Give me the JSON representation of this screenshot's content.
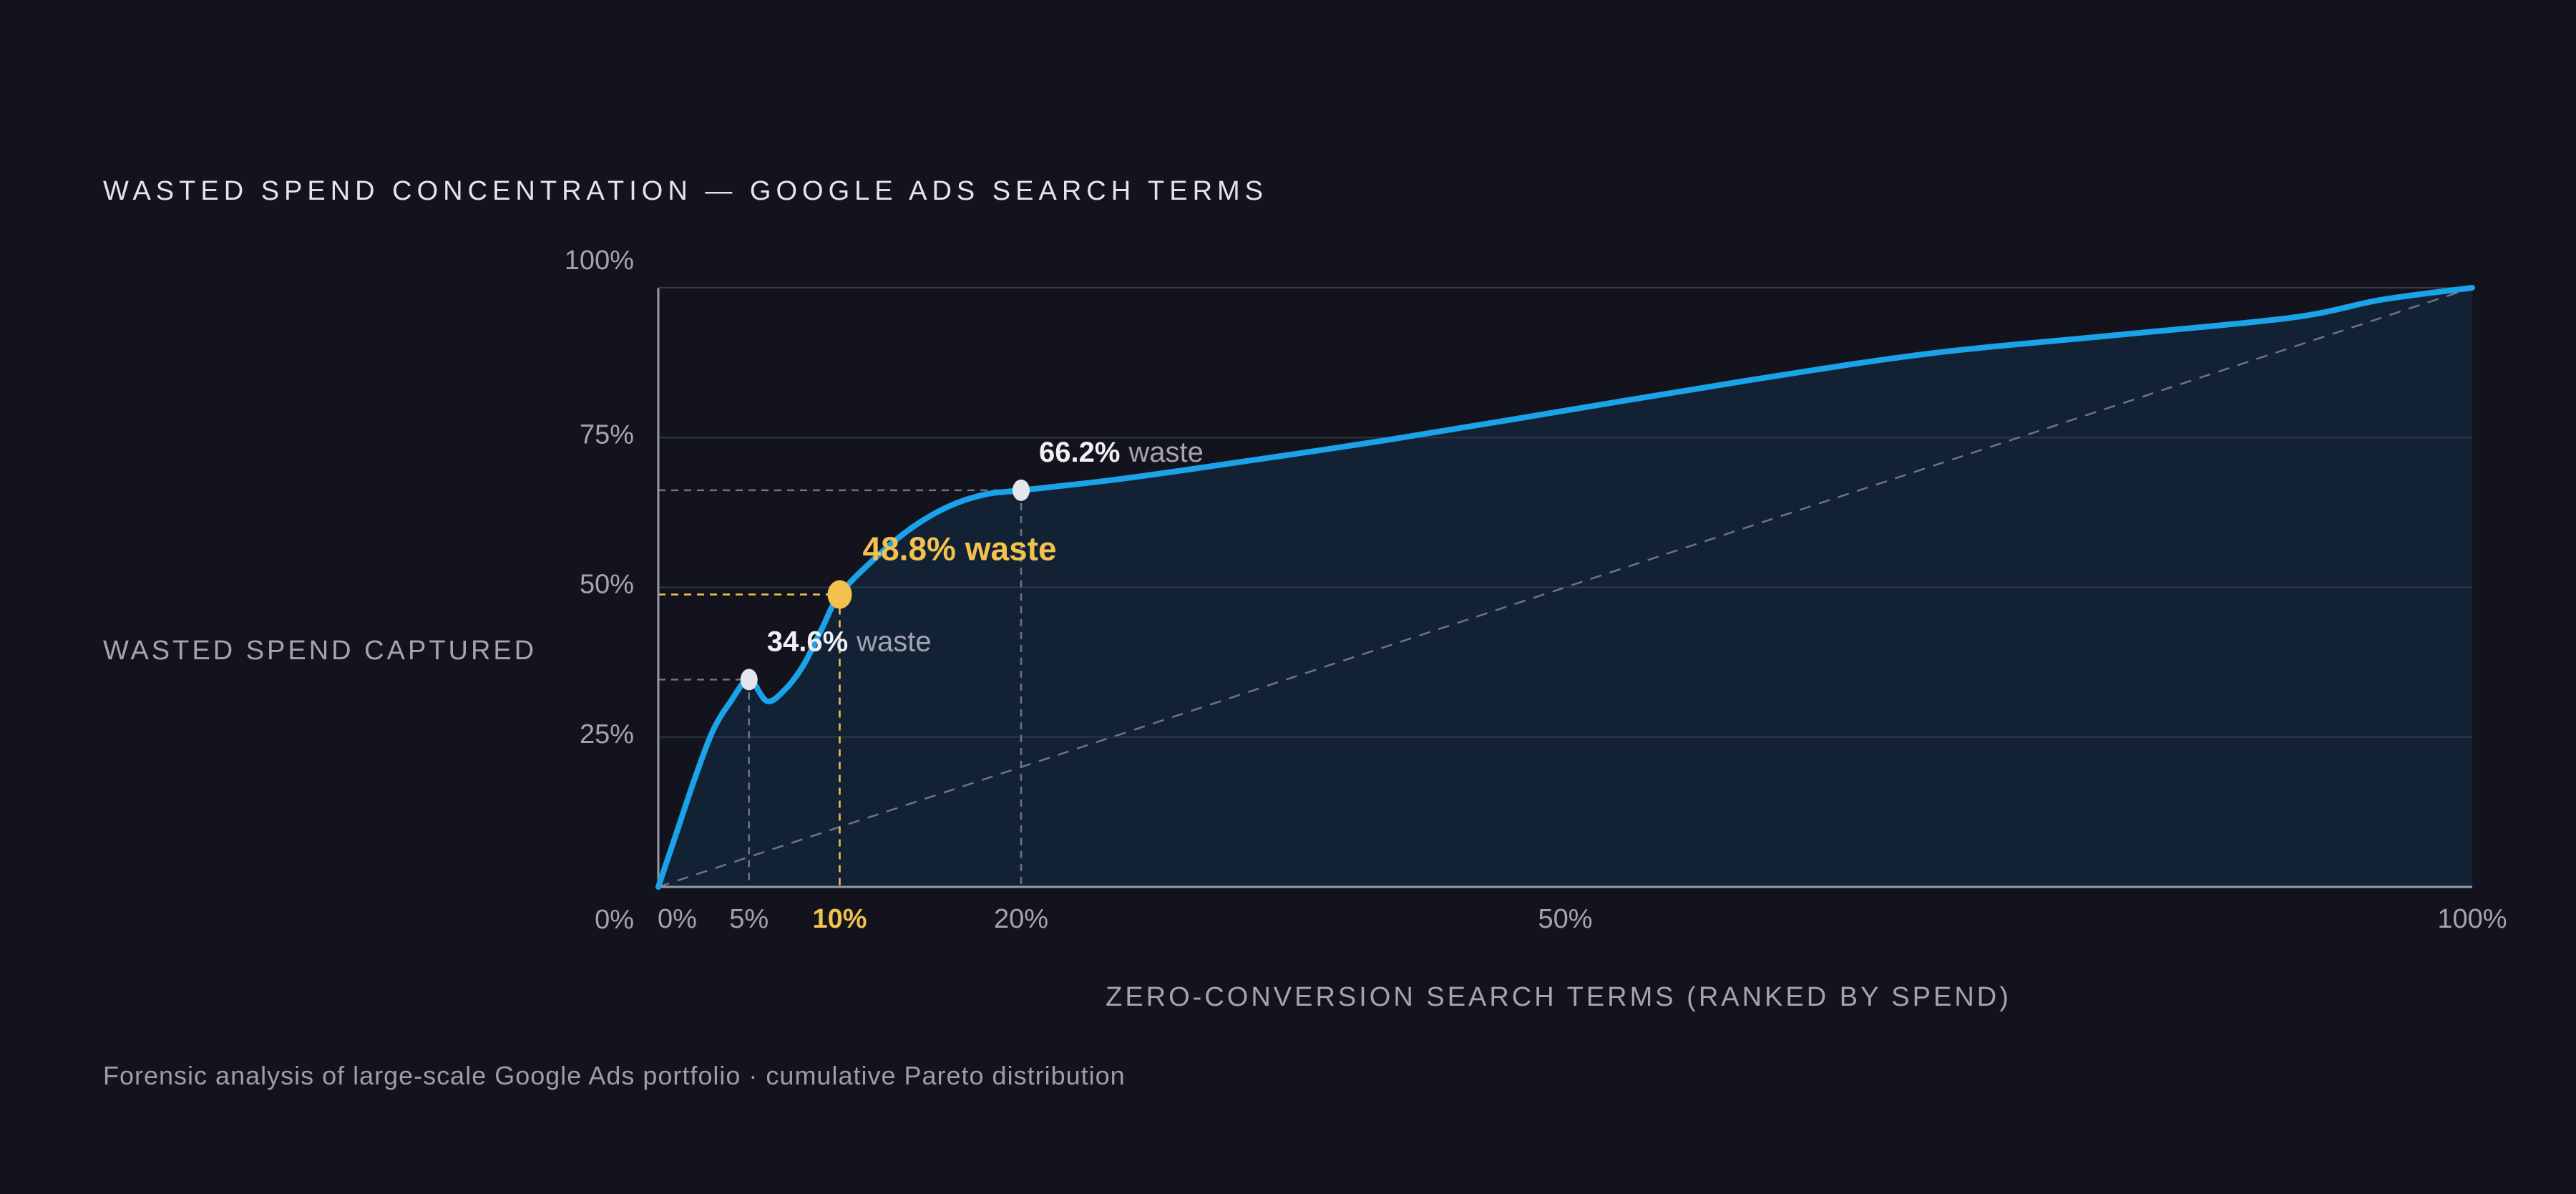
{
  "title": "WASTED SPEND CONCENTRATION — GOOGLE ADS SEARCH TERMS",
  "footnote": "Forensic analysis of large-scale Google Ads portfolio · cumulative Pareto distribution",
  "colors": {
    "background": "#13131d",
    "curve": "#1aa3e8",
    "area": "#122234",
    "highlight": "#f2c14e",
    "marker": "#e4e4ec",
    "grid": "#2e3644",
    "axis": "#9a9aa8",
    "guide": "#6e7482"
  },
  "chart_data": {
    "type": "area",
    "xlabel": "ZERO-CONVERSION SEARCH TERMS (RANKED BY SPEND)",
    "ylabel": "WASTED SPEND CAPTURED",
    "xlim": [
      0,
      100
    ],
    "ylim": [
      0,
      100
    ],
    "x_ticks": [
      {
        "value": 0,
        "label": "0%"
      },
      {
        "value": 5,
        "label": "5%"
      },
      {
        "value": 10,
        "label": "10%",
        "highlight": true
      },
      {
        "value": 20,
        "label": "20%"
      },
      {
        "value": 50,
        "label": "50%"
      },
      {
        "value": 100,
        "label": "100%"
      }
    ],
    "y_ticks": [
      {
        "value": 0,
        "label": "0%"
      },
      {
        "value": 25,
        "label": "25%"
      },
      {
        "value": 50,
        "label": "50%"
      },
      {
        "value": 75,
        "label": "75%"
      },
      {
        "value": 100,
        "label": "100%"
      }
    ],
    "grid": true,
    "series": [
      {
        "x": [
          0,
          1,
          2,
          3,
          4,
          5,
          6,
          7,
          8,
          9,
          10,
          12,
          14,
          16,
          18,
          20,
          25,
          30,
          40,
          50,
          60,
          70,
          80,
          90,
          95,
          100
        ],
        "y": [
          0,
          9,
          18,
          26,
          31,
          34.6,
          31,
          33,
          37,
          43,
          48.8,
          55,
          60,
          63.5,
          65.5,
          66.2,
          67.9,
          70,
          74.5,
          79.5,
          84.5,
          89,
          92,
          95,
          98,
          100
        ]
      }
    ],
    "reference_line": {
      "x": [
        0,
        100
      ],
      "y": [
        0,
        100
      ]
    },
    "annotations": [
      {
        "x": 5,
        "y": 34.6,
        "value": "34.6%",
        "text": "waste",
        "highlight": false
      },
      {
        "x": 10,
        "y": 48.8,
        "value": "48.8% waste",
        "text": "",
        "highlight": true
      },
      {
        "x": 20,
        "y": 66.2,
        "value": "66.2%",
        "text": "waste",
        "highlight": false
      }
    ]
  }
}
